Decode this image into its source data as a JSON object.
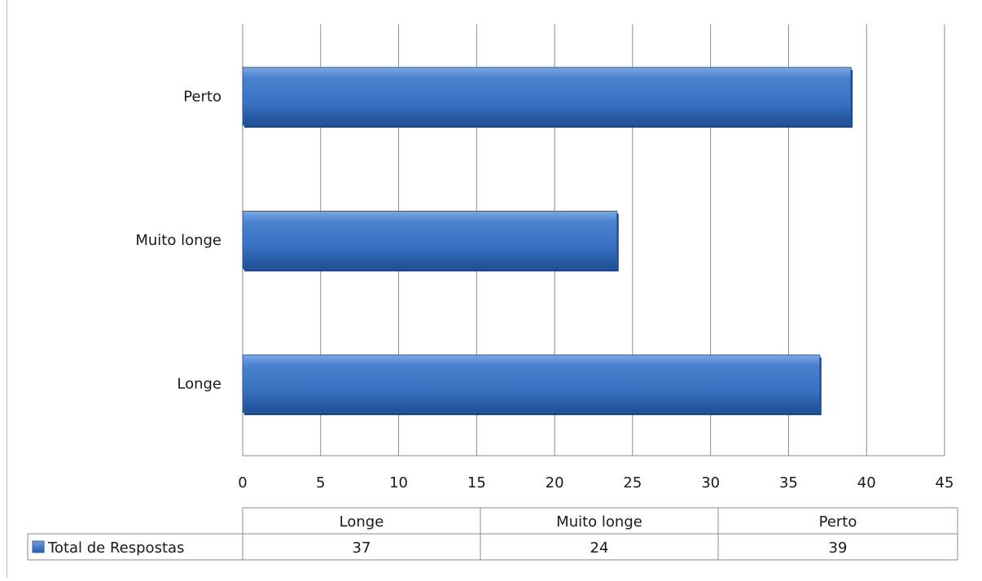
{
  "chart_data": {
    "type": "bar",
    "orientation": "horizontal",
    "categories": [
      "Longe",
      "Muito longe",
      "Perto"
    ],
    "series": [
      {
        "name": "Total de Respostas",
        "values": [
          37,
          24,
          39
        ],
        "color": "#3a74c6"
      }
    ],
    "title": "",
    "xlabel": "",
    "ylabel": "",
    "xlim": [
      0,
      45
    ],
    "x_ticks": [
      0,
      5,
      10,
      15,
      20,
      25,
      30,
      35,
      40,
      45
    ],
    "grid": true,
    "data_table": true,
    "legend": "data-table"
  }
}
